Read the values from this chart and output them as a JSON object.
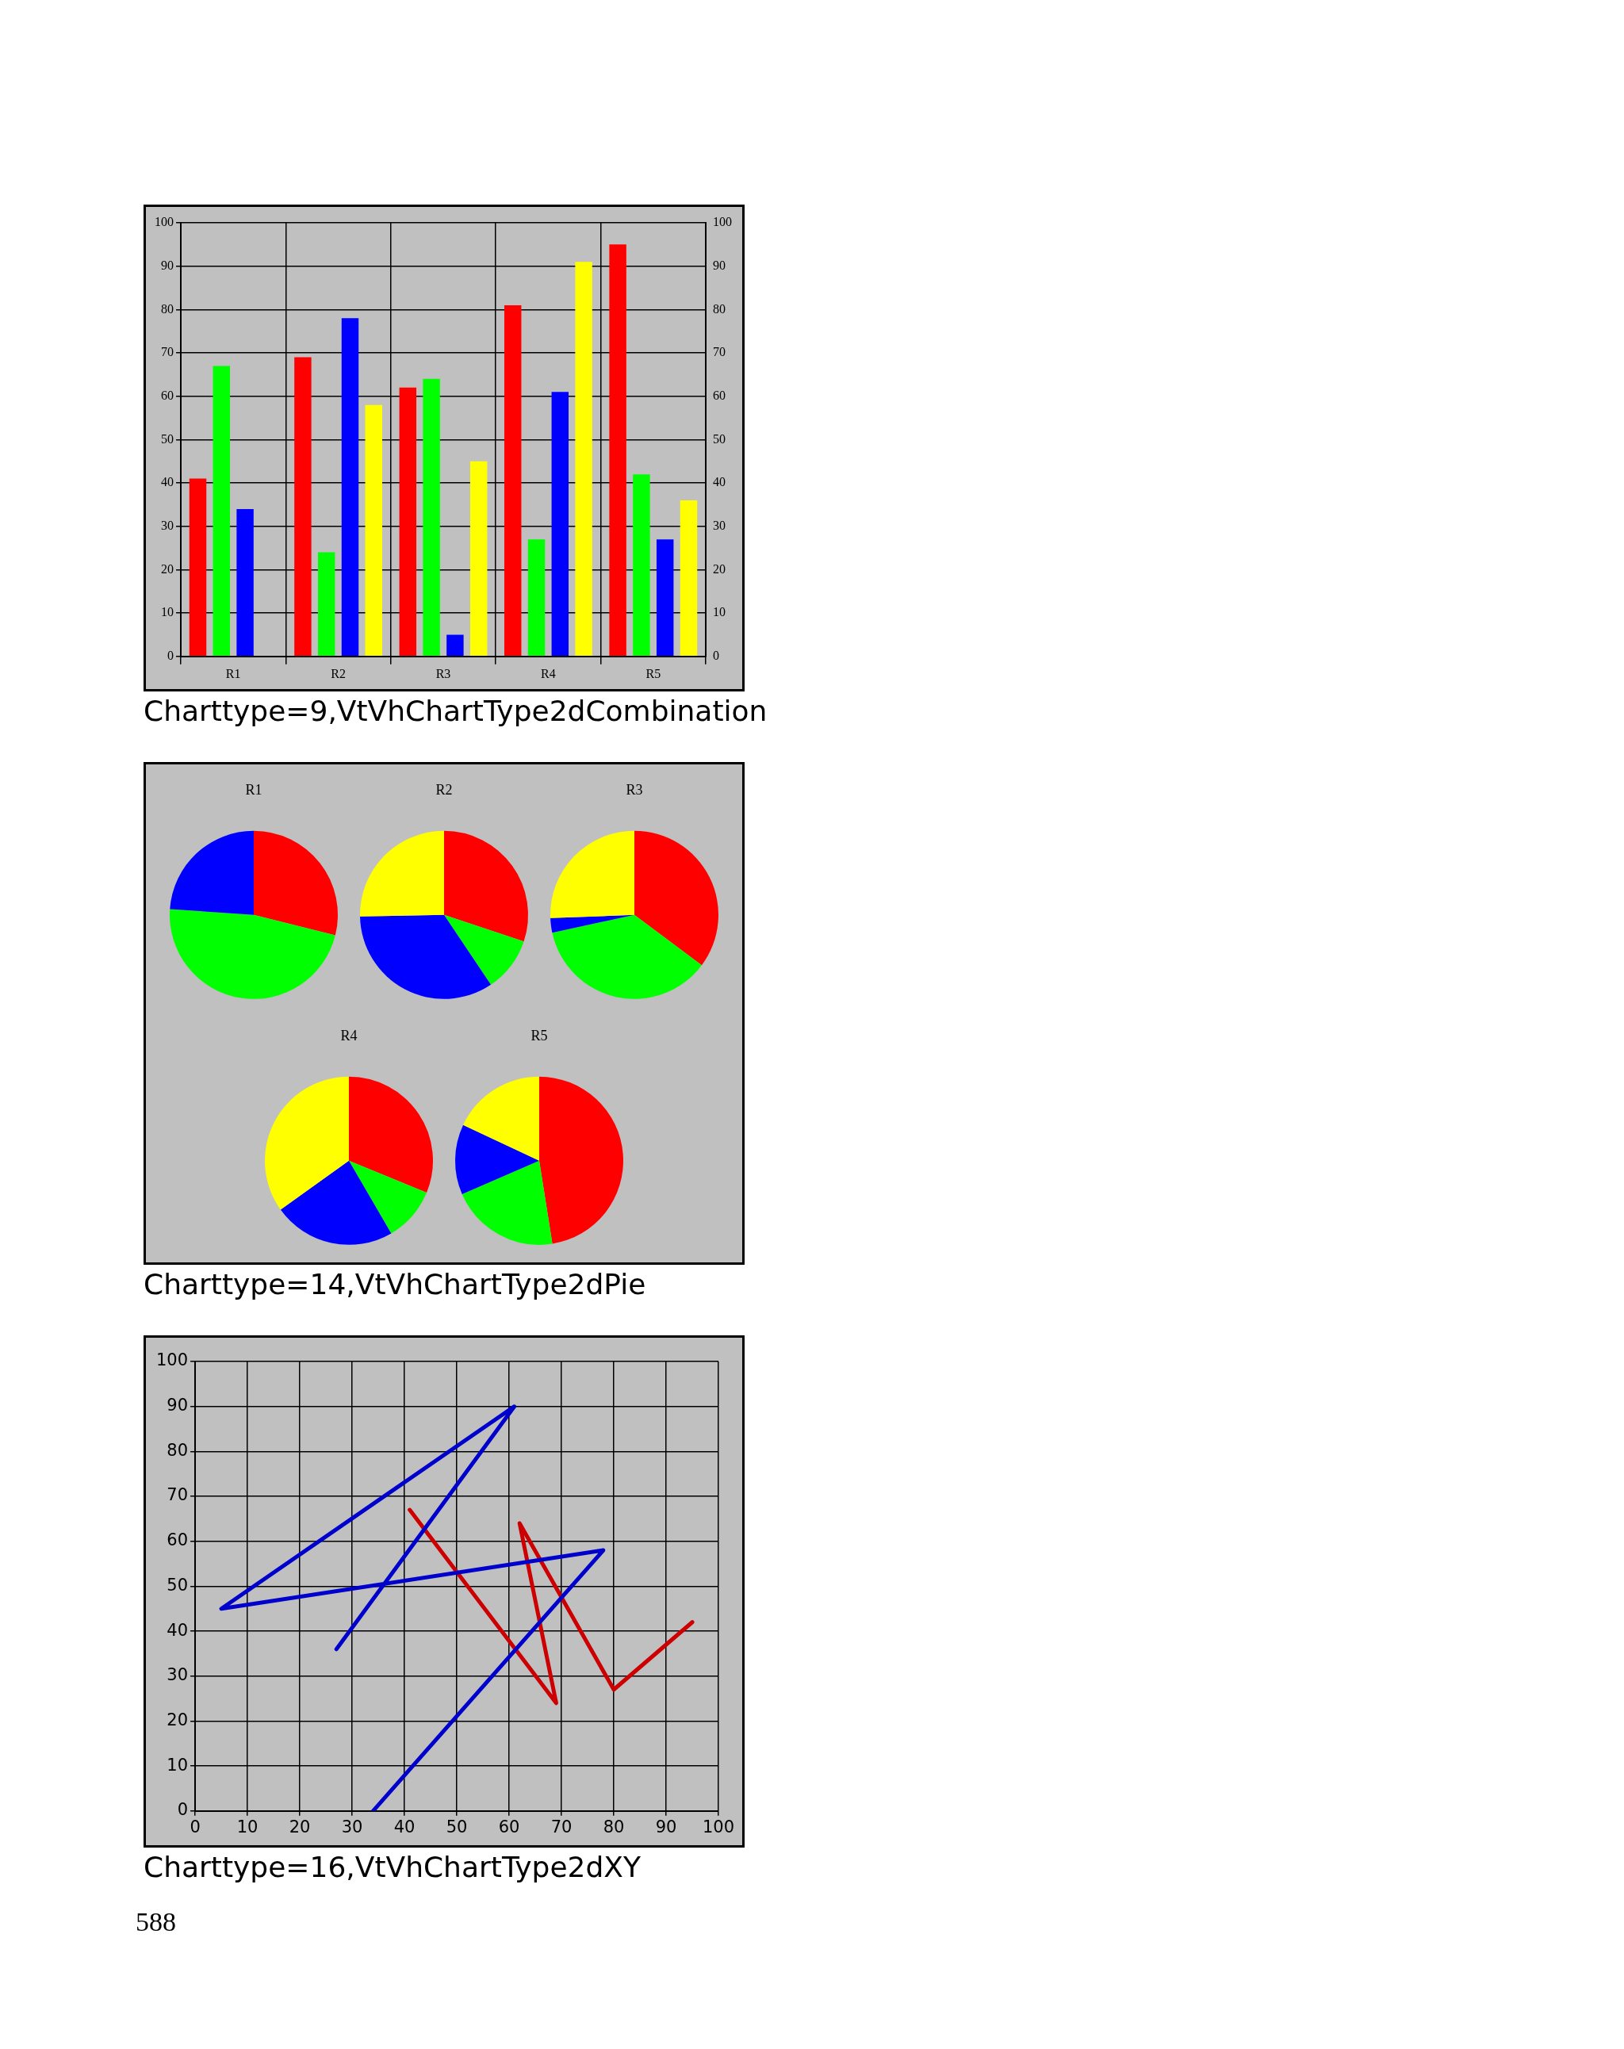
{
  "chart_data": [
    {
      "type": "bar",
      "categories": [
        "R1",
        "R2",
        "R3",
        "R4",
        "R5"
      ],
      "series": [
        {
          "color": "#ff0000",
          "values": [
            41,
            69,
            62,
            81,
            95
          ]
        },
        {
          "color": "#00ff00",
          "values": [
            67,
            24,
            64,
            27,
            42
          ]
        },
        {
          "color": "#0000ff",
          "values": [
            34,
            78,
            5,
            61,
            27
          ]
        },
        {
          "color": "#ffff00",
          "values": [
            0,
            58,
            45,
            91,
            36
          ]
        }
      ],
      "ylim": [
        0,
        100
      ],
      "yticks": [
        0,
        10,
        20,
        30,
        40,
        50,
        60,
        70,
        80,
        90,
        100
      ],
      "y2lim": [
        0,
        100
      ],
      "y2ticks": [
        0,
        10,
        20,
        30,
        40,
        50,
        60,
        70,
        80,
        90,
        100
      ],
      "grid": true,
      "annotations": [
        "Charttype=9,VtVhChartType2dCombination"
      ]
    },
    {
      "type": "pie",
      "title": "R1",
      "categories": [
        null,
        null,
        null
      ],
      "values": [
        28.9,
        47.2,
        23.9
      ],
      "colors": [
        "#ff0000",
        "#00ff00",
        "#0000ff"
      ]
    },
    {
      "type": "pie",
      "title": "R2",
      "categories": [
        null,
        null,
        null,
        null
      ],
      "values": [
        30.1,
        10.5,
        34.1,
        25.3
      ],
      "colors": [
        "#ff0000",
        "#00ff00",
        "#0000ff",
        "#ffff00"
      ]
    },
    {
      "type": "pie",
      "title": "R3",
      "categories": [
        null,
        null,
        null,
        null
      ],
      "values": [
        35.2,
        36.4,
        2.8,
        25.6
      ],
      "colors": [
        "#ff0000",
        "#00ff00",
        "#0000ff",
        "#ffff00"
      ]
    },
    {
      "type": "pie",
      "title": "R4",
      "categories": [
        null,
        null,
        null,
        null
      ],
      "values": [
        31.2,
        10.4,
        23.5,
        34.9
      ],
      "colors": [
        "#ff0000",
        "#00ff00",
        "#0000ff",
        "#ffff00"
      ]
    },
    {
      "type": "pie",
      "title": "R5",
      "categories": [
        null,
        null,
        null,
        null
      ],
      "values": [
        47.5,
        21,
        13.5,
        18
      ],
      "colors": [
        "#ff0000",
        "#00ff00",
        "#0000ff",
        "#ffff00"
      ],
      "annotations": [
        "Charttype=14,VtVhChartType2dPie"
      ]
    },
    {
      "type": "line",
      "series": [
        {
          "color": "#0000cc",
          "x": [
            27,
            61,
            5,
            78,
            34
          ],
          "values": [
            36,
            90,
            45,
            58,
            0
          ]
        },
        {
          "color": "#cc0000",
          "x": [
            41,
            69,
            62,
            80,
            95
          ],
          "values": [
            67,
            24,
            64,
            27,
            42
          ]
        }
      ],
      "xlim": [
        0,
        100
      ],
      "xticks": [
        0,
        10,
        20,
        30,
        40,
        50,
        60,
        70,
        80,
        90,
        100
      ],
      "ylim": [
        0,
        100
      ],
      "yticks": [
        0,
        10,
        20,
        30,
        40,
        50,
        60,
        70,
        80,
        90,
        100
      ],
      "grid": true,
      "annotations": [
        "Charttype=16,VtVhChartType2dXY",
        "588"
      ]
    }
  ]
}
